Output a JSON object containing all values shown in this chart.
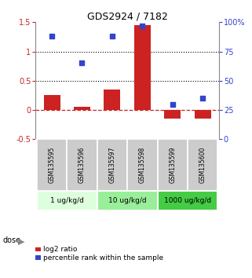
{
  "title": "GDS2924 / 7182",
  "samples": [
    "GSM135595",
    "GSM135596",
    "GSM135597",
    "GSM135598",
    "GSM135599",
    "GSM135600"
  ],
  "log2_ratio": [
    0.25,
    0.05,
    0.35,
    1.45,
    -0.15,
    -0.15
  ],
  "percentile_rank": [
    88,
    65,
    88,
    97,
    30,
    35
  ],
  "bar_color": "#cc2222",
  "dot_color": "#3344cc",
  "ylim_left": [
    -0.5,
    1.5
  ],
  "ylim_right": [
    0,
    100
  ],
  "yticks_left": [
    -0.5,
    0,
    0.5,
    1.0,
    1.5
  ],
  "yticks_right": [
    0,
    25,
    50,
    75,
    100
  ],
  "ytick_labels_left": [
    "-0.5",
    "0",
    "0.5",
    "1",
    "1.5"
  ],
  "ytick_labels_right": [
    "0",
    "25",
    "50",
    "75",
    "100%"
  ],
  "hlines": [
    0.5,
    1.0
  ],
  "dose_groups": [
    {
      "label": "1 ug/kg/d",
      "samples": [
        0,
        1
      ],
      "color": "#ddffdd"
    },
    {
      "label": "10 ug/kg/d",
      "samples": [
        2,
        3
      ],
      "color": "#99ee99"
    },
    {
      "label": "1000 ug/kg/d",
      "samples": [
        4,
        5
      ],
      "color": "#44cc44"
    }
  ],
  "dose_label": "dose",
  "legend_bar_label": "log2 ratio",
  "legend_dot_label": "percentile rank within the sample",
  "bg_sample_color": "#cccccc",
  "x_positions": [
    0,
    1,
    2,
    3,
    4,
    5
  ]
}
